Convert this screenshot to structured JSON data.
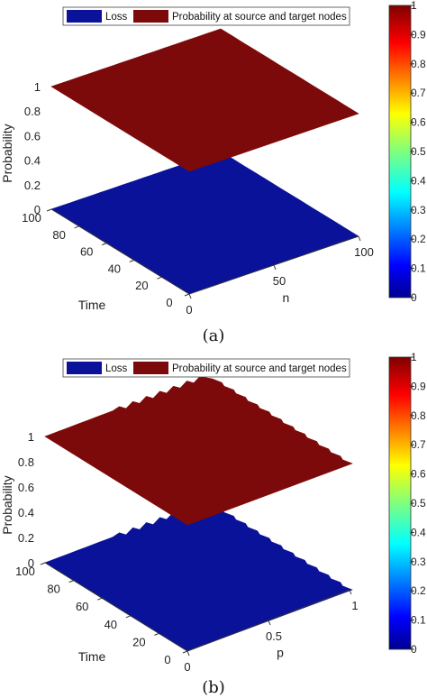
{
  "panels": [
    {
      "caption": "(a)",
      "legend": [
        "Loss",
        "Probability at source and target nodes"
      ],
      "ylabel": "Probability",
      "xlabel": "Time",
      "plabel": "n",
      "prob_ticks": [
        "0",
        "0.2",
        "0.4",
        "0.6",
        "0.8",
        "1"
      ],
      "time_ticks": [
        "100",
        "80",
        "60",
        "40",
        "20",
        "0"
      ],
      "p_ticks": [
        "0",
        "50",
        "100"
      ],
      "colorbar_ticks": [
        "0",
        "0.1",
        "0.2",
        "0.3",
        "0.4",
        "0.5",
        "0.6",
        "0.7",
        "0.8",
        "0.9",
        "1"
      ]
    },
    {
      "caption": "(b)",
      "legend": [
        "Loss",
        "Probability at source and target nodes"
      ],
      "ylabel": "Probability",
      "xlabel": "Time",
      "plabel": "p",
      "prob_ticks": [
        "0",
        "0.2",
        "0.4",
        "0.6",
        "0.8",
        "1"
      ],
      "time_ticks": [
        "100",
        "80",
        "60",
        "40",
        "20",
        "0"
      ],
      "p_ticks": [
        "0",
        "0.5",
        "1"
      ],
      "colorbar_ticks": [
        "0",
        "0.1",
        "0.2",
        "0.3",
        "0.4",
        "0.5",
        "0.6",
        "0.7",
        "0.8",
        "0.9",
        "1"
      ]
    }
  ],
  "colors": {
    "loss": "#0a1299",
    "probability": "#7d0a0a"
  },
  "chart_data": [
    {
      "type": "surface",
      "x": {
        "label": "n",
        "range": [
          0,
          100
        ]
      },
      "y": {
        "label": "Time",
        "range": [
          0,
          100
        ]
      },
      "z": {
        "label": "Probability",
        "range": [
          0,
          1
        ]
      },
      "series": [
        {
          "name": "Loss",
          "value": 0
        },
        {
          "name": "Probability at source and target nodes",
          "value": 1
        }
      ],
      "colorbar": {
        "range": [
          0,
          1
        ],
        "colormap": "jet"
      }
    },
    {
      "type": "surface",
      "x": {
        "label": "p",
        "range": [
          0,
          1
        ]
      },
      "y": {
        "label": "Time",
        "range": [
          0,
          100
        ]
      },
      "z": {
        "label": "Probability",
        "range": [
          0,
          1
        ]
      },
      "series": [
        {
          "name": "Loss",
          "value": 0
        },
        {
          "name": "Probability at source and target nodes",
          "value": 1
        }
      ],
      "colorbar": {
        "range": [
          0,
          1
        ],
        "colormap": "jet"
      }
    }
  ]
}
